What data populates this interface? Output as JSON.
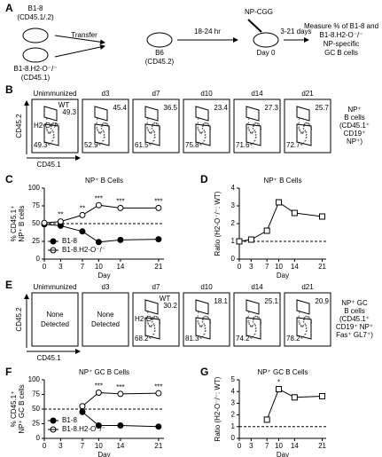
{
  "panel_labels": [
    "A",
    "B",
    "C",
    "D",
    "E",
    "F",
    "G"
  ],
  "schematic": {
    "donor1": [
      "B1-8",
      "(CD45.1/.2)"
    ],
    "donor2": [
      "B1-8.H2-O⁻/⁻",
      "(CD45.1)"
    ],
    "transfer": "Transfer",
    "host": [
      "B6",
      "(CD45.2)"
    ],
    "wait": "18-24 hr",
    "immunogen": "NP-CGG",
    "day0": "Day 0",
    "interval": "3-21 days",
    "measure": [
      "Measure % of B1-8 and",
      "B1-8.H2-O⁻/⁻",
      "NP-specific",
      "GC B cells"
    ]
  },
  "flow_b": {
    "y_axis": "CD45.2",
    "x_axis": "CD45.1",
    "population": [
      "NP⁺",
      "B cells",
      "(CD45.1⁺",
      "CD19⁺",
      "NP⁺)"
    ],
    "panels": [
      {
        "title": "Unimmunized",
        "wt_label": "WT",
        "ko_label": "H2-O⁻/⁻",
        "wt": 49.3,
        "ko": 49.3
      },
      {
        "title": "d3",
        "wt": 45.4,
        "ko": 52.9
      },
      {
        "title": "d7",
        "wt": 36.5,
        "ko": 61.5
      },
      {
        "title": "d10",
        "wt": 23.4,
        "ko": 75.8
      },
      {
        "title": "d14",
        "wt": 27.3,
        "ko": 71.6
      },
      {
        "title": "d21",
        "wt": 25.7,
        "ko": 72.7
      }
    ]
  },
  "flow_e": {
    "y_axis": "CD45.2",
    "x_axis": "CD45.1",
    "population": [
      "NP⁺ GC",
      "B cells",
      "(CD45.1⁺",
      "CD19⁺ NP⁺",
      "Fas⁺ GL7⁺)"
    ],
    "panels": [
      {
        "title": "Unimmunized",
        "none": [
          "None",
          "Detected"
        ]
      },
      {
        "title": "d3",
        "none": [
          "None",
          "Detected"
        ]
      },
      {
        "title": "d7",
        "wt_label": "WT",
        "ko_label": "H2-O⁻",
        "wt": 30.2,
        "ko": 68.2
      },
      {
        "title": "d10",
        "wt": 18.1,
        "ko": 81.3
      },
      {
        "title": "d14",
        "wt": 25.1,
        "ko": 74.2
      },
      {
        "title": "d21",
        "wt": 20.9,
        "ko": 78.2
      }
    ]
  },
  "chart_data": [
    {
      "type": "line",
      "title": "NP⁺ B Cells",
      "x_label": "Day",
      "y_label": [
        "% CD45.1⁺",
        "NP⁺ B cells"
      ],
      "x": [
        0,
        3,
        7,
        10,
        14,
        21
      ],
      "xlim": [
        0,
        22
      ],
      "xticks": [
        0,
        3,
        7,
        10,
        14,
        21
      ],
      "ylim": [
        0,
        100
      ],
      "yticks": [
        0,
        25,
        50,
        75,
        100
      ],
      "reference_line": 50,
      "legend": "lower left",
      "series": [
        {
          "name": "B1-8",
          "color": "#000000",
          "marker_fill": "#000000",
          "marker": "circle",
          "values": [
            49,
            47,
            39,
            24,
            27,
            28
          ]
        },
        {
          "name": "B1-8.H2-O⁻/⁻",
          "color": "#000000",
          "marker_fill": "#ffffff",
          "marker": "circle",
          "values": [
            51,
            53,
            62,
            76,
            72,
            72
          ]
        }
      ],
      "annotations": [
        {
          "x": 3,
          "text": "**"
        },
        {
          "x": 7,
          "text": "**"
        },
        {
          "x": 10,
          "text": "***"
        },
        {
          "x": 14,
          "text": "***"
        },
        {
          "x": 21,
          "text": "***"
        }
      ]
    },
    {
      "type": "line",
      "title": "NP⁺ B Cells",
      "x_label": "Day",
      "y_label": [
        "Ratio (H2-O⁻/⁻: WT)"
      ],
      "x": [
        0,
        3,
        7,
        10,
        14,
        21
      ],
      "xlim": [
        0,
        22
      ],
      "xticks": [
        0,
        3,
        7,
        10,
        14,
        21
      ],
      "ylim": [
        0,
        4
      ],
      "yticks": [
        0,
        1,
        2,
        3,
        4
      ],
      "reference_line": 1,
      "series": [
        {
          "color": "#000000",
          "marker_fill": "#ffffff",
          "marker": "square",
          "values": [
            1.0,
            1.1,
            1.6,
            3.2,
            2.6,
            2.4
          ]
        }
      ]
    },
    {
      "type": "line",
      "title": "NP⁺ GC B Cells",
      "x_label": "Day",
      "y_label": [
        "% CD45.1⁺",
        "NP⁺ GC B cells"
      ],
      "x": [
        7,
        10,
        14,
        21
      ],
      "xlim": [
        0,
        22
      ],
      "xticks": [
        0,
        3,
        7,
        10,
        14,
        21
      ],
      "ylim": [
        0,
        100
      ],
      "yticks": [
        0,
        25,
        50,
        75,
        100
      ],
      "reference_line": 50,
      "legend": "lower left",
      "series": [
        {
          "name": "B1-8",
          "color": "#000000",
          "marker_fill": "#000000",
          "marker": "circle",
          "values": [
            45,
            22,
            22,
            20
          ]
        },
        {
          "name": "B1-8.H2-O⁻/⁻",
          "color": "#000000",
          "marker_fill": "#ffffff",
          "marker": "circle",
          "values": [
            55,
            78,
            76,
            77
          ]
        }
      ],
      "annotations": [
        {
          "x": 10,
          "text": "***"
        },
        {
          "x": 14,
          "text": "***"
        },
        {
          "x": 21,
          "text": "***"
        }
      ]
    },
    {
      "type": "line",
      "title": "NP⁺ GC B Cells",
      "x_label": "Day",
      "y_label": [
        "Ratio (H2-O⁻/⁻: WT)"
      ],
      "x": [
        7,
        10,
        14,
        21
      ],
      "xlim": [
        0,
        22
      ],
      "xticks": [
        0,
        3,
        7,
        10,
        14,
        21
      ],
      "ylim": [
        0,
        5
      ],
      "yticks": [
        0,
        1,
        2,
        3,
        4,
        5
      ],
      "reference_line": 1,
      "series": [
        {
          "color": "#000000",
          "marker_fill": "#ffffff",
          "marker": "square",
          "values": [
            1.6,
            4.2,
            3.5,
            3.6
          ]
        }
      ],
      "annotations": [
        {
          "x": 10,
          "text": "*"
        }
      ]
    }
  ]
}
